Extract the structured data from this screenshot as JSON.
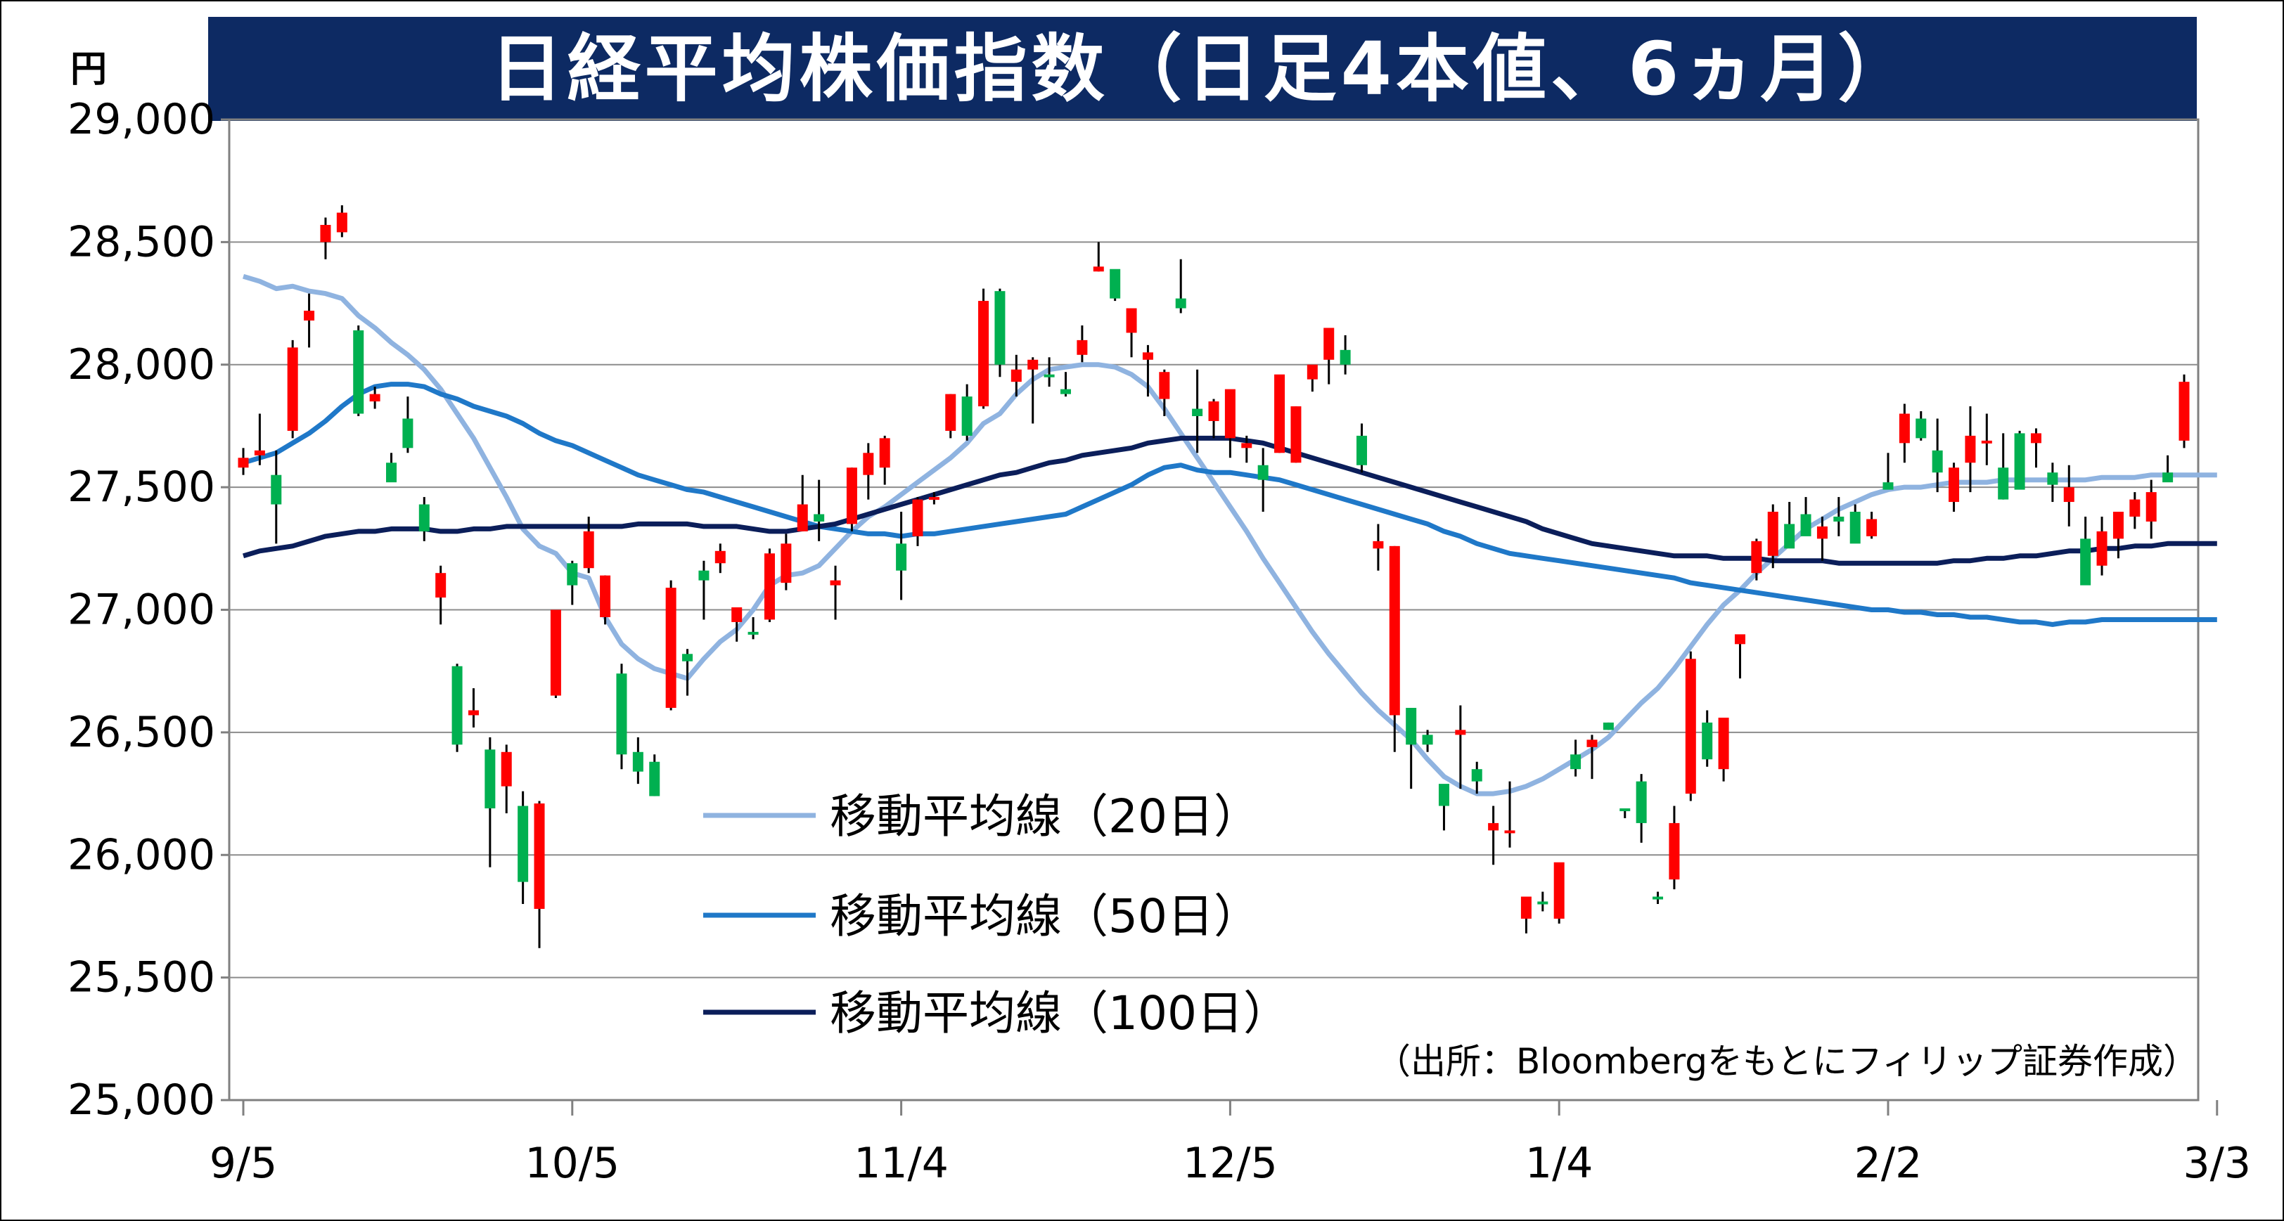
{
  "chart_data": {
    "type": "candlestick",
    "title": "日経平均株価指数（日足4本値、6ヵ月）",
    "unit": "円",
    "source": "（出所：Bloombergをもとにフィリップ証券作成）",
    "ylim": [
      25000,
      29000
    ],
    "yticks": [
      "25,000",
      "25,500",
      "26,000",
      "26,500",
      "27,000",
      "27,500",
      "28,000",
      "28,500",
      "29,000"
    ],
    "ytick_values": [
      25000,
      25500,
      26000,
      26500,
      27000,
      27500,
      28000,
      28500,
      29000
    ],
    "x_ticks": [
      {
        "label": "9/5",
        "index": 0
      },
      {
        "label": "10/5",
        "index": 20
      },
      {
        "label": "11/4",
        "index": 40
      },
      {
        "label": "12/5",
        "index": 60
      },
      {
        "label": "1/4",
        "index": 80
      },
      {
        "label": "2/2",
        "index": 100
      },
      {
        "label": "3/3",
        "index": 120
      }
    ],
    "grid": true,
    "up_color": "#ff0000",
    "down_color": "#00b050",
    "candles_ohlc": [
      [
        27580,
        27660,
        27550,
        27620
      ],
      [
        27630,
        27800,
        27590,
        27650
      ],
      [
        27550,
        27650,
        27270,
        27430
      ],
      [
        27730,
        28100,
        27700,
        28070
      ],
      [
        28180,
        28290,
        28070,
        28220
      ],
      [
        28500,
        28600,
        28430,
        28570
      ],
      [
        28540,
        28650,
        28520,
        28620
      ],
      [
        28140,
        28160,
        27790,
        27800
      ],
      [
        27850,
        27910,
        27820,
        27880
      ],
      [
        27600,
        27640,
        27530,
        27520
      ],
      [
        27780,
        27870,
        27640,
        27660
      ],
      [
        27430,
        27460,
        27280,
        27320
      ],
      [
        27050,
        27180,
        26940,
        27150
      ],
      [
        26770,
        26780,
        26420,
        26450
      ],
      [
        26570,
        26680,
        26520,
        26590
      ],
      [
        26430,
        26480,
        25950,
        26190
      ],
      [
        26280,
        26450,
        26170,
        26420
      ],
      [
        26200,
        26260,
        25800,
        25890
      ],
      [
        25780,
        26220,
        25620,
        26210
      ],
      [
        26650,
        27000,
        26640,
        27000
      ],
      [
        27190,
        27200,
        27020,
        27100
      ],
      [
        27170,
        27380,
        27150,
        27320
      ],
      [
        26970,
        27140,
        26940,
        27140
      ],
      [
        26740,
        26780,
        26350,
        26410
      ],
      [
        26420,
        26480,
        26290,
        26340
      ],
      [
        26380,
        26410,
        26240,
        26240
      ],
      [
        26600,
        27120,
        26590,
        27090
      ],
      [
        26820,
        26840,
        26650,
        26790
      ],
      [
        27160,
        27200,
        26960,
        27120
      ],
      [
        27190,
        27270,
        27150,
        27240
      ],
      [
        26950,
        27000,
        26870,
        27010
      ],
      [
        26910,
        26970,
        26880,
        26900
      ],
      [
        26960,
        27250,
        26950,
        27230
      ],
      [
        27110,
        27310,
        27080,
        27270
      ],
      [
        27320,
        27550,
        27320,
        27430
      ],
      [
        27390,
        27530,
        27280,
        27360
      ],
      [
        27100,
        27180,
        26960,
        27120
      ],
      [
        27350,
        27580,
        27320,
        27580
      ],
      [
        27550,
        27680,
        27450,
        27640
      ],
      [
        27580,
        27710,
        27510,
        27700
      ],
      [
        27270,
        27400,
        27040,
        27160
      ],
      [
        27300,
        27460,
        27260,
        27450
      ],
      [
        27450,
        27480,
        27430,
        27460
      ],
      [
        27730,
        27880,
        27700,
        27880
      ],
      [
        27870,
        27920,
        27690,
        27710
      ],
      [
        27830,
        28310,
        27820,
        28260
      ],
      [
        28300,
        28310,
        27950,
        28000
      ],
      [
        27930,
        28040,
        27870,
        27980
      ],
      [
        27980,
        28030,
        27760,
        28020
      ],
      [
        27960,
        28030,
        27910,
        27950
      ],
      [
        27900,
        27970,
        27870,
        27880
      ],
      [
        28040,
        28160,
        28010,
        28100
      ],
      [
        28380,
        28500,
        28380,
        28400
      ],
      [
        28390,
        28380,
        28260,
        28270
      ],
      [
        28130,
        28220,
        28030,
        28230
      ],
      [
        28020,
        28080,
        27870,
        28050
      ],
      [
        27860,
        27980,
        27790,
        27970
      ],
      [
        28270,
        28430,
        28210,
        28230
      ],
      [
        27820,
        27980,
        27640,
        27790
      ],
      [
        27770,
        27860,
        27700,
        27850
      ],
      [
        27700,
        27880,
        27620,
        27900
      ],
      [
        27660,
        27710,
        27600,
        27680
      ],
      [
        27590,
        27660,
        27400,
        27530
      ],
      [
        27640,
        27900,
        27640,
        27960
      ],
      [
        27600,
        27830,
        27600,
        27830
      ],
      [
        27940,
        27980,
        27890,
        28000
      ],
      [
        28020,
        28130,
        27920,
        28150
      ],
      [
        28060,
        28120,
        27960,
        28000
      ],
      [
        27710,
        27760,
        27560,
        27590
      ],
      [
        27250,
        27350,
        27160,
        27280
      ],
      [
        26570,
        27260,
        26420,
        27260
      ],
      [
        26600,
        26600,
        26270,
        26450
      ],
      [
        26490,
        26510,
        26420,
        26450
      ],
      [
        26290,
        26210,
        26100,
        26200
      ],
      [
        26490,
        26610,
        26270,
        26510
      ],
      [
        26350,
        26380,
        26250,
        26300
      ],
      [
        26100,
        26200,
        25960,
        26130
      ],
      [
        26090,
        26300,
        26030,
        26100
      ],
      [
        25740,
        25820,
        25680,
        25830
      ],
      [
        25810,
        25850,
        25770,
        25800
      ],
      [
        25740,
        25900,
        25720,
        25970
      ],
      [
        26410,
        26470,
        26320,
        26350
      ],
      [
        26440,
        26490,
        26310,
        26470
      ],
      [
        26540,
        26540,
        26510,
        26510
      ],
      [
        26190,
        26190,
        26150,
        26180
      ],
      [
        26300,
        26330,
        26050,
        26130
      ],
      [
        25830,
        25850,
        25800,
        25820
      ],
      [
        25900,
        26200,
        25860,
        26130
      ],
      [
        26250,
        26830,
        26220,
        26800
      ],
      [
        26540,
        26590,
        26360,
        26390
      ],
      [
        26350,
        26530,
        26300,
        26560
      ],
      [
        26860,
        26870,
        26720,
        26900
      ],
      [
        27150,
        27290,
        27120,
        27280
      ],
      [
        27220,
        27430,
        27170,
        27400
      ],
      [
        27350,
        27440,
        27290,
        27250
      ],
      [
        27390,
        27460,
        27320,
        27300
      ],
      [
        27290,
        27380,
        27200,
        27340
      ],
      [
        27380,
        27460,
        27300,
        27360
      ],
      [
        27400,
        27430,
        27310,
        27270
      ],
      [
        27300,
        27400,
        27290,
        27370
      ],
      [
        27520,
        27640,
        27500,
        27490
      ],
      [
        27680,
        27840,
        27600,
        27800
      ],
      [
        27780,
        27810,
        27690,
        27700
      ],
      [
        27650,
        27780,
        27480,
        27560
      ],
      [
        27440,
        27600,
        27400,
        27580
      ],
      [
        27600,
        27830,
        27480,
        27710
      ],
      [
        27690,
        27800,
        27590,
        27690
      ],
      [
        27580,
        27720,
        27450,
        27450
      ],
      [
        27720,
        27730,
        27500,
        27490
      ],
      [
        27680,
        27740,
        27580,
        27720
      ],
      [
        27560,
        27600,
        27440,
        27510
      ],
      [
        27440,
        27590,
        27340,
        27500
      ],
      [
        27290,
        27380,
        27190,
        27100
      ],
      [
        27180,
        27380,
        27140,
        27320
      ],
      [
        27290,
        27380,
        27210,
        27400
      ],
      [
        27380,
        27480,
        27330,
        27450
      ],
      [
        27360,
        27530,
        27290,
        27480
      ],
      [
        27560,
        27630,
        27550,
        27520
      ],
      [
        27690,
        27960,
        27660,
        27930
      ]
    ],
    "series": [
      {
        "name": "移動平均線（20日）",
        "color": "#8fb3e0",
        "values": [
          28360,
          28340,
          28310,
          28320,
          28300,
          28290,
          28270,
          28200,
          28150,
          28090,
          28040,
          27980,
          27900,
          27800,
          27700,
          27580,
          27460,
          27330,
          27260,
          27230,
          27150,
          27130,
          26970,
          26860,
          26800,
          26760,
          26740,
          26720,
          26800,
          26870,
          26920,
          27000,
          27100,
          27140,
          27150,
          27180,
          27250,
          27320,
          27380,
          27420,
          27470,
          27520,
          27570,
          27620,
          27680,
          27760,
          27800,
          27880,
          27940,
          27980,
          27990,
          28000,
          28000,
          27990,
          27960,
          27910,
          27820,
          27720,
          27620,
          27520,
          27420,
          27320,
          27210,
          27110,
          27010,
          26910,
          26820,
          26740,
          26660,
          26590,
          26530,
          26470,
          26390,
          26320,
          26280,
          26250,
          26250,
          26260,
          26280,
          26310,
          26350,
          26390,
          26430,
          26480,
          26550,
          26620,
          26680,
          26760,
          26850,
          26940,
          27020,
          27080,
          27150,
          27210,
          27270,
          27330,
          27370,
          27410,
          27440,
          27470,
          27490,
          27500,
          27500,
          27510,
          27520,
          27520,
          27520,
          27530,
          27530,
          27530,
          27530,
          27530,
          27530,
          27540,
          27540,
          27540,
          27550,
          27550,
          27550,
          27550,
          27550
        ]
      },
      {
        "name": "移動平均線（50日）",
        "color": "#1f78c8",
        "values": [
          27600,
          27620,
          27640,
          27680,
          27720,
          27770,
          27830,
          27880,
          27910,
          27920,
          27920,
          27910,
          27880,
          27860,
          27830,
          27810,
          27790,
          27760,
          27720,
          27690,
          27670,
          27640,
          27610,
          27580,
          27550,
          27530,
          27510,
          27490,
          27480,
          27460,
          27440,
          27420,
          27400,
          27380,
          27360,
          27340,
          27330,
          27320,
          27310,
          27310,
          27300,
          27310,
          27310,
          27320,
          27330,
          27340,
          27350,
          27360,
          27370,
          27380,
          27390,
          27420,
          27450,
          27480,
          27510,
          27550,
          27580,
          27590,
          27570,
          27560,
          27560,
          27550,
          27540,
          27530,
          27510,
          27490,
          27470,
          27450,
          27430,
          27410,
          27390,
          27370,
          27350,
          27320,
          27300,
          27270,
          27250,
          27230,
          27220,
          27210,
          27200,
          27190,
          27180,
          27170,
          27160,
          27150,
          27140,
          27130,
          27110,
          27100,
          27090,
          27080,
          27070,
          27060,
          27050,
          27040,
          27030,
          27020,
          27010,
          27000,
          27000,
          26990,
          26990,
          26980,
          26980,
          26970,
          26970,
          26960,
          26950,
          26950,
          26940,
          26950,
          26950,
          26960,
          26960,
          26960,
          26960,
          26960,
          26960,
          26960,
          26960
        ]
      },
      {
        "name": "移動平均線（100日）",
        "color": "#0b1e5a",
        "values": [
          27220,
          27240,
          27250,
          27260,
          27280,
          27300,
          27310,
          27320,
          27320,
          27330,
          27330,
          27330,
          27320,
          27320,
          27330,
          27330,
          27340,
          27340,
          27340,
          27340,
          27340,
          27340,
          27340,
          27340,
          27350,
          27350,
          27350,
          27350,
          27340,
          27340,
          27340,
          27330,
          27320,
          27320,
          27330,
          27340,
          27350,
          27370,
          27390,
          27410,
          27430,
          27450,
          27470,
          27490,
          27510,
          27530,
          27550,
          27560,
          27580,
          27600,
          27610,
          27630,
          27640,
          27650,
          27660,
          27680,
          27690,
          27700,
          27700,
          27700,
          27700,
          27690,
          27680,
          27660,
          27640,
          27620,
          27600,
          27580,
          27560,
          27540,
          27520,
          27500,
          27480,
          27460,
          27440,
          27420,
          27400,
          27380,
          27360,
          27330,
          27310,
          27290,
          27270,
          27260,
          27250,
          27240,
          27230,
          27220,
          27220,
          27220,
          27210,
          27210,
          27210,
          27200,
          27200,
          27200,
          27200,
          27190,
          27190,
          27190,
          27190,
          27190,
          27190,
          27190,
          27200,
          27200,
          27210,
          27210,
          27220,
          27220,
          27230,
          27240,
          27240,
          27250,
          27250,
          27260,
          27260,
          27270,
          27270,
          27270,
          27270
        ]
      }
    ]
  }
}
